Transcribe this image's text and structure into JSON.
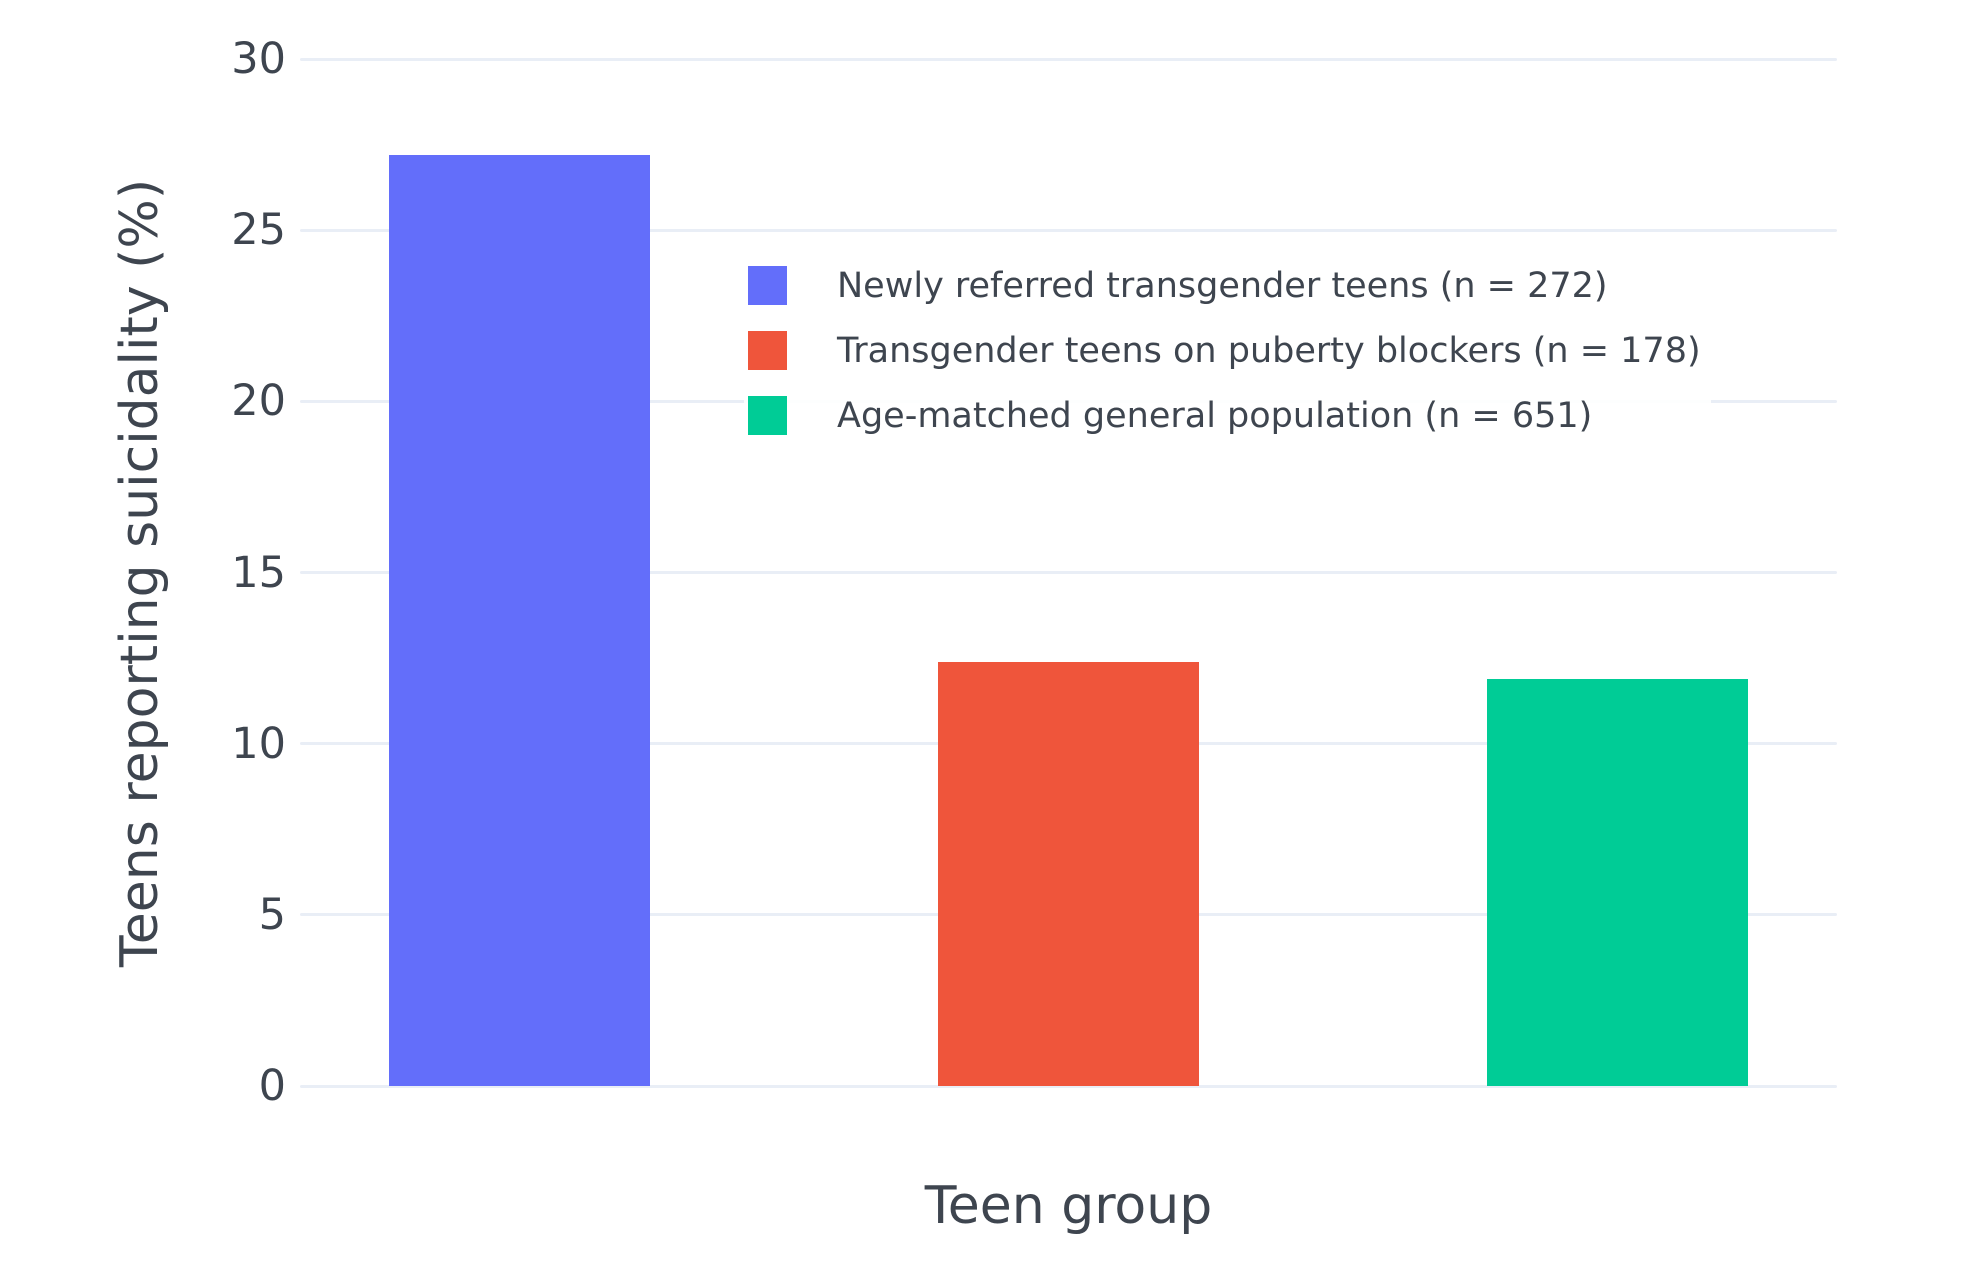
{
  "chart_data": {
    "type": "bar",
    "title": "",
    "xlabel": "Teen group",
    "ylabel": "Teens reporting suicidality (%)",
    "ylim": [
      0,
      30
    ],
    "yticks": [
      0,
      5,
      10,
      15,
      20,
      25,
      30
    ],
    "grid": true,
    "legend_position": "inside-top-center-left",
    "categories": [
      "Newly referred transgender teens (n = 272)",
      "Transgender teens on puberty blockers (n = 178)",
      "Age-matched general population (n = 651)"
    ],
    "values": [
      27.2,
      12.4,
      11.9
    ],
    "bar_colors": [
      "#636EFA",
      "#EF553B",
      "#00CC96"
    ],
    "legend": [
      {
        "label": "Newly referred transgender teens (n = 272)",
        "color": "#636EFA"
      },
      {
        "label": "Transgender teens on puberty blockers (n = 178)",
        "color": "#EF553B"
      },
      {
        "label": "Age-matched general population (n = 651)",
        "color": "#00CC96"
      }
    ]
  },
  "colors": {
    "background": "#FFFFFF",
    "grid": "#E9EEF6",
    "text": "#3E454F"
  }
}
